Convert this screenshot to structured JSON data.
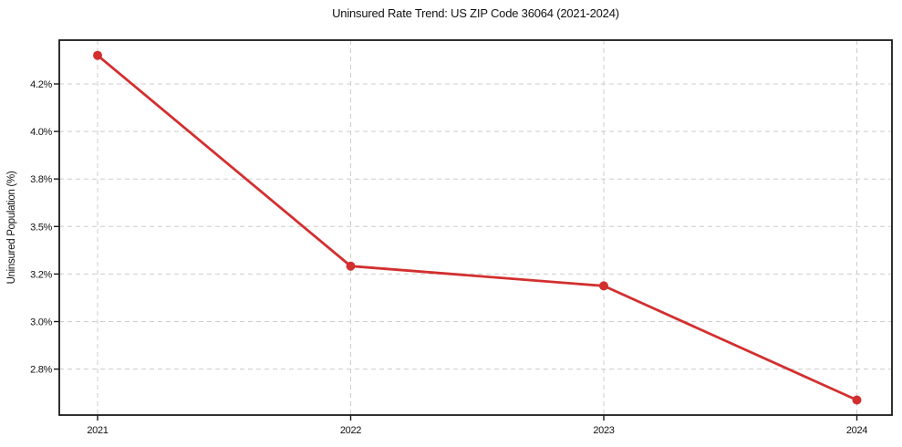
{
  "chart_data": {
    "type": "line",
    "title": "Uninsured Rate Trend: US ZIP Code 36064 (2021-2024)",
    "xlabel": "",
    "ylabel": "Uninsured Population (%)",
    "categories": [
      "2021",
      "2022",
      "2023",
      "2024"
    ],
    "series": [
      {
        "name": "Uninsured Population (%)",
        "values": [
          4.32,
          3.25,
          3.15,
          2.67
        ]
      }
    ],
    "ytick_values": [
      4.2,
      4.0,
      3.8,
      3.5,
      3.2,
      3.0,
      2.8
    ],
    "ytick_labels": [
      "4.2%",
      "4.0%",
      "3.8%",
      "3.5%",
      "3.2%",
      "3.0%",
      "2.8%"
    ],
    "grid": true,
    "grid_style": "dashed",
    "legend": false,
    "marker": "circle",
    "colors": {
      "line": "#d32f2f",
      "marker": "#d32f2f",
      "grid": "#cccccc",
      "axis": "#1a1a1a",
      "text": "#111111",
      "background": "#ffffff"
    }
  }
}
